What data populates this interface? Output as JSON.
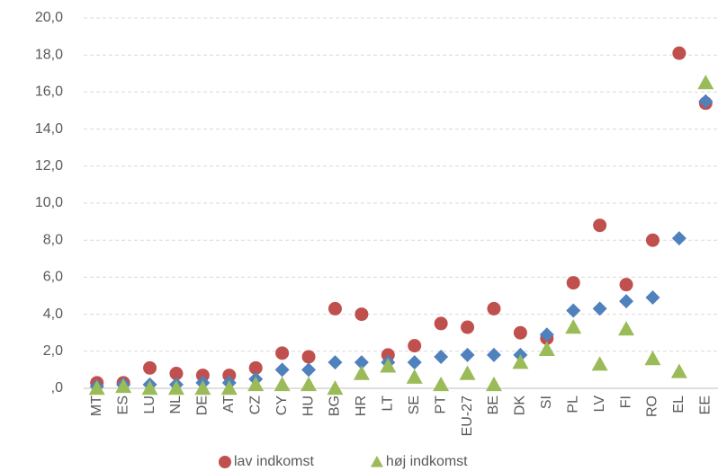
{
  "chart_data": {
    "type": "scatter",
    "categories": [
      "MT",
      "ES",
      "LU",
      "NL",
      "DE",
      "AT",
      "CZ",
      "CY",
      "HU",
      "BG",
      "HR",
      "LT",
      "SE",
      "PT",
      "EU-27",
      "BE",
      "DK",
      "SI",
      "PL",
      "LV",
      "FI",
      "RO",
      "EL",
      "EE"
    ],
    "series": [
      {
        "name": "lav indkomst",
        "color": "#c0504d",
        "marker": "circle",
        "values": [
          0.3,
          0.3,
          1.1,
          0.8,
          0.7,
          0.7,
          1.1,
          1.9,
          1.7,
          4.3,
          4.0,
          1.8,
          2.3,
          3.5,
          3.3,
          4.3,
          3.0,
          2.7,
          5.7,
          8.8,
          5.6,
          8.0,
          18.1,
          15.4
        ]
      },
      {
        "color": "#4f81bd",
        "marker": "diamond",
        "values": [
          0.1,
          0.2,
          0.2,
          0.2,
          0.3,
          0.3,
          0.5,
          1.0,
          1.0,
          1.4,
          1.4,
          1.4,
          1.4,
          1.7,
          1.8,
          1.8,
          1.8,
          2.9,
          4.2,
          4.3,
          4.7,
          4.9,
          8.1,
          15.5
        ]
      },
      {
        "name": "høj indkomst",
        "color": "#9bbb59",
        "marker": "triangle",
        "values": [
          0.0,
          0.1,
          0.0,
          0.0,
          0.0,
          0.0,
          0.2,
          0.2,
          0.2,
          0.0,
          0.8,
          1.2,
          0.6,
          0.2,
          0.8,
          0.2,
          1.4,
          2.1,
          3.3,
          1.3,
          3.2,
          1.6,
          0.9,
          16.5
        ]
      }
    ],
    "ylim": [
      0,
      20
    ],
    "yticks": [
      {
        "value": 0,
        "label": ",0"
      },
      {
        "value": 2,
        "label": "2,0"
      },
      {
        "value": 4,
        "label": "4,0"
      },
      {
        "value": 6,
        "label": "6,0"
      },
      {
        "value": 8,
        "label": "8,0"
      },
      {
        "value": 10,
        "label": "10,0"
      },
      {
        "value": 12,
        "label": "12,0"
      },
      {
        "value": 14,
        "label": "14,0"
      },
      {
        "value": 16,
        "label": "16,0"
      },
      {
        "value": 18,
        "label": "18,0"
      },
      {
        "value": 20,
        "label": "20,0"
      }
    ],
    "grid": true,
    "legend": "bottom"
  }
}
